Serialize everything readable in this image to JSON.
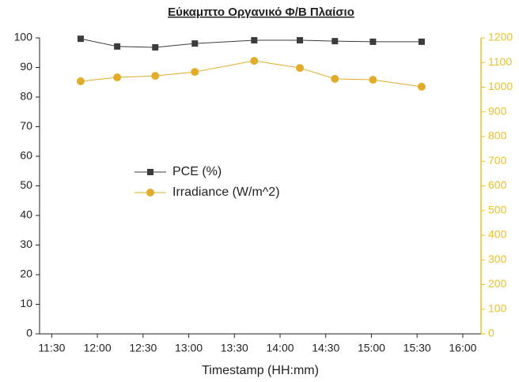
{
  "chart_data": {
    "type": "line",
    "title": "Εύκαμπτο Οργανικό Φ/Β Πλαίσιο",
    "x_label": "Timestamp (HH:mm)",
    "x": [
      "11:49",
      "12:13",
      "12:38",
      "13:04",
      "13:43",
      "14:13",
      "14:36",
      "15:01",
      "15:33"
    ],
    "xlim": [
      "11:22",
      "16:12"
    ],
    "xticks": [
      "11:30",
      "12:00",
      "12:30",
      "13:00",
      "13:30",
      "14:00",
      "14:30",
      "15:00",
      "15:30",
      "16:00"
    ],
    "ylim": [
      0,
      100
    ],
    "yticks": [
      0,
      10,
      20,
      30,
      40,
      50,
      60,
      70,
      80,
      90,
      100
    ],
    "y2lim": [
      0,
      1200
    ],
    "y2ticks": [
      0,
      100,
      200,
      300,
      400,
      500,
      600,
      700,
      800,
      900,
      1000,
      1100,
      1200
    ],
    "y2_color": "#e6c229",
    "legend": "center-left",
    "series": [
      {
        "name": "PCE (%)",
        "color": "#3c3c3c",
        "marker": "square",
        "values": [
          99.7,
          97.1,
          96.8,
          98.1,
          99.2,
          99.2,
          98.9,
          98.7,
          98.7
        ]
      },
      {
        "name": "Irradiance (W/m^2)",
        "color": "#e0ac2a",
        "marker": "circle",
        "axis": "y2",
        "values": [
          1024,
          1040,
          1046,
          1062,
          1107,
          1078,
          1034,
          1030,
          1002
        ]
      }
    ]
  }
}
